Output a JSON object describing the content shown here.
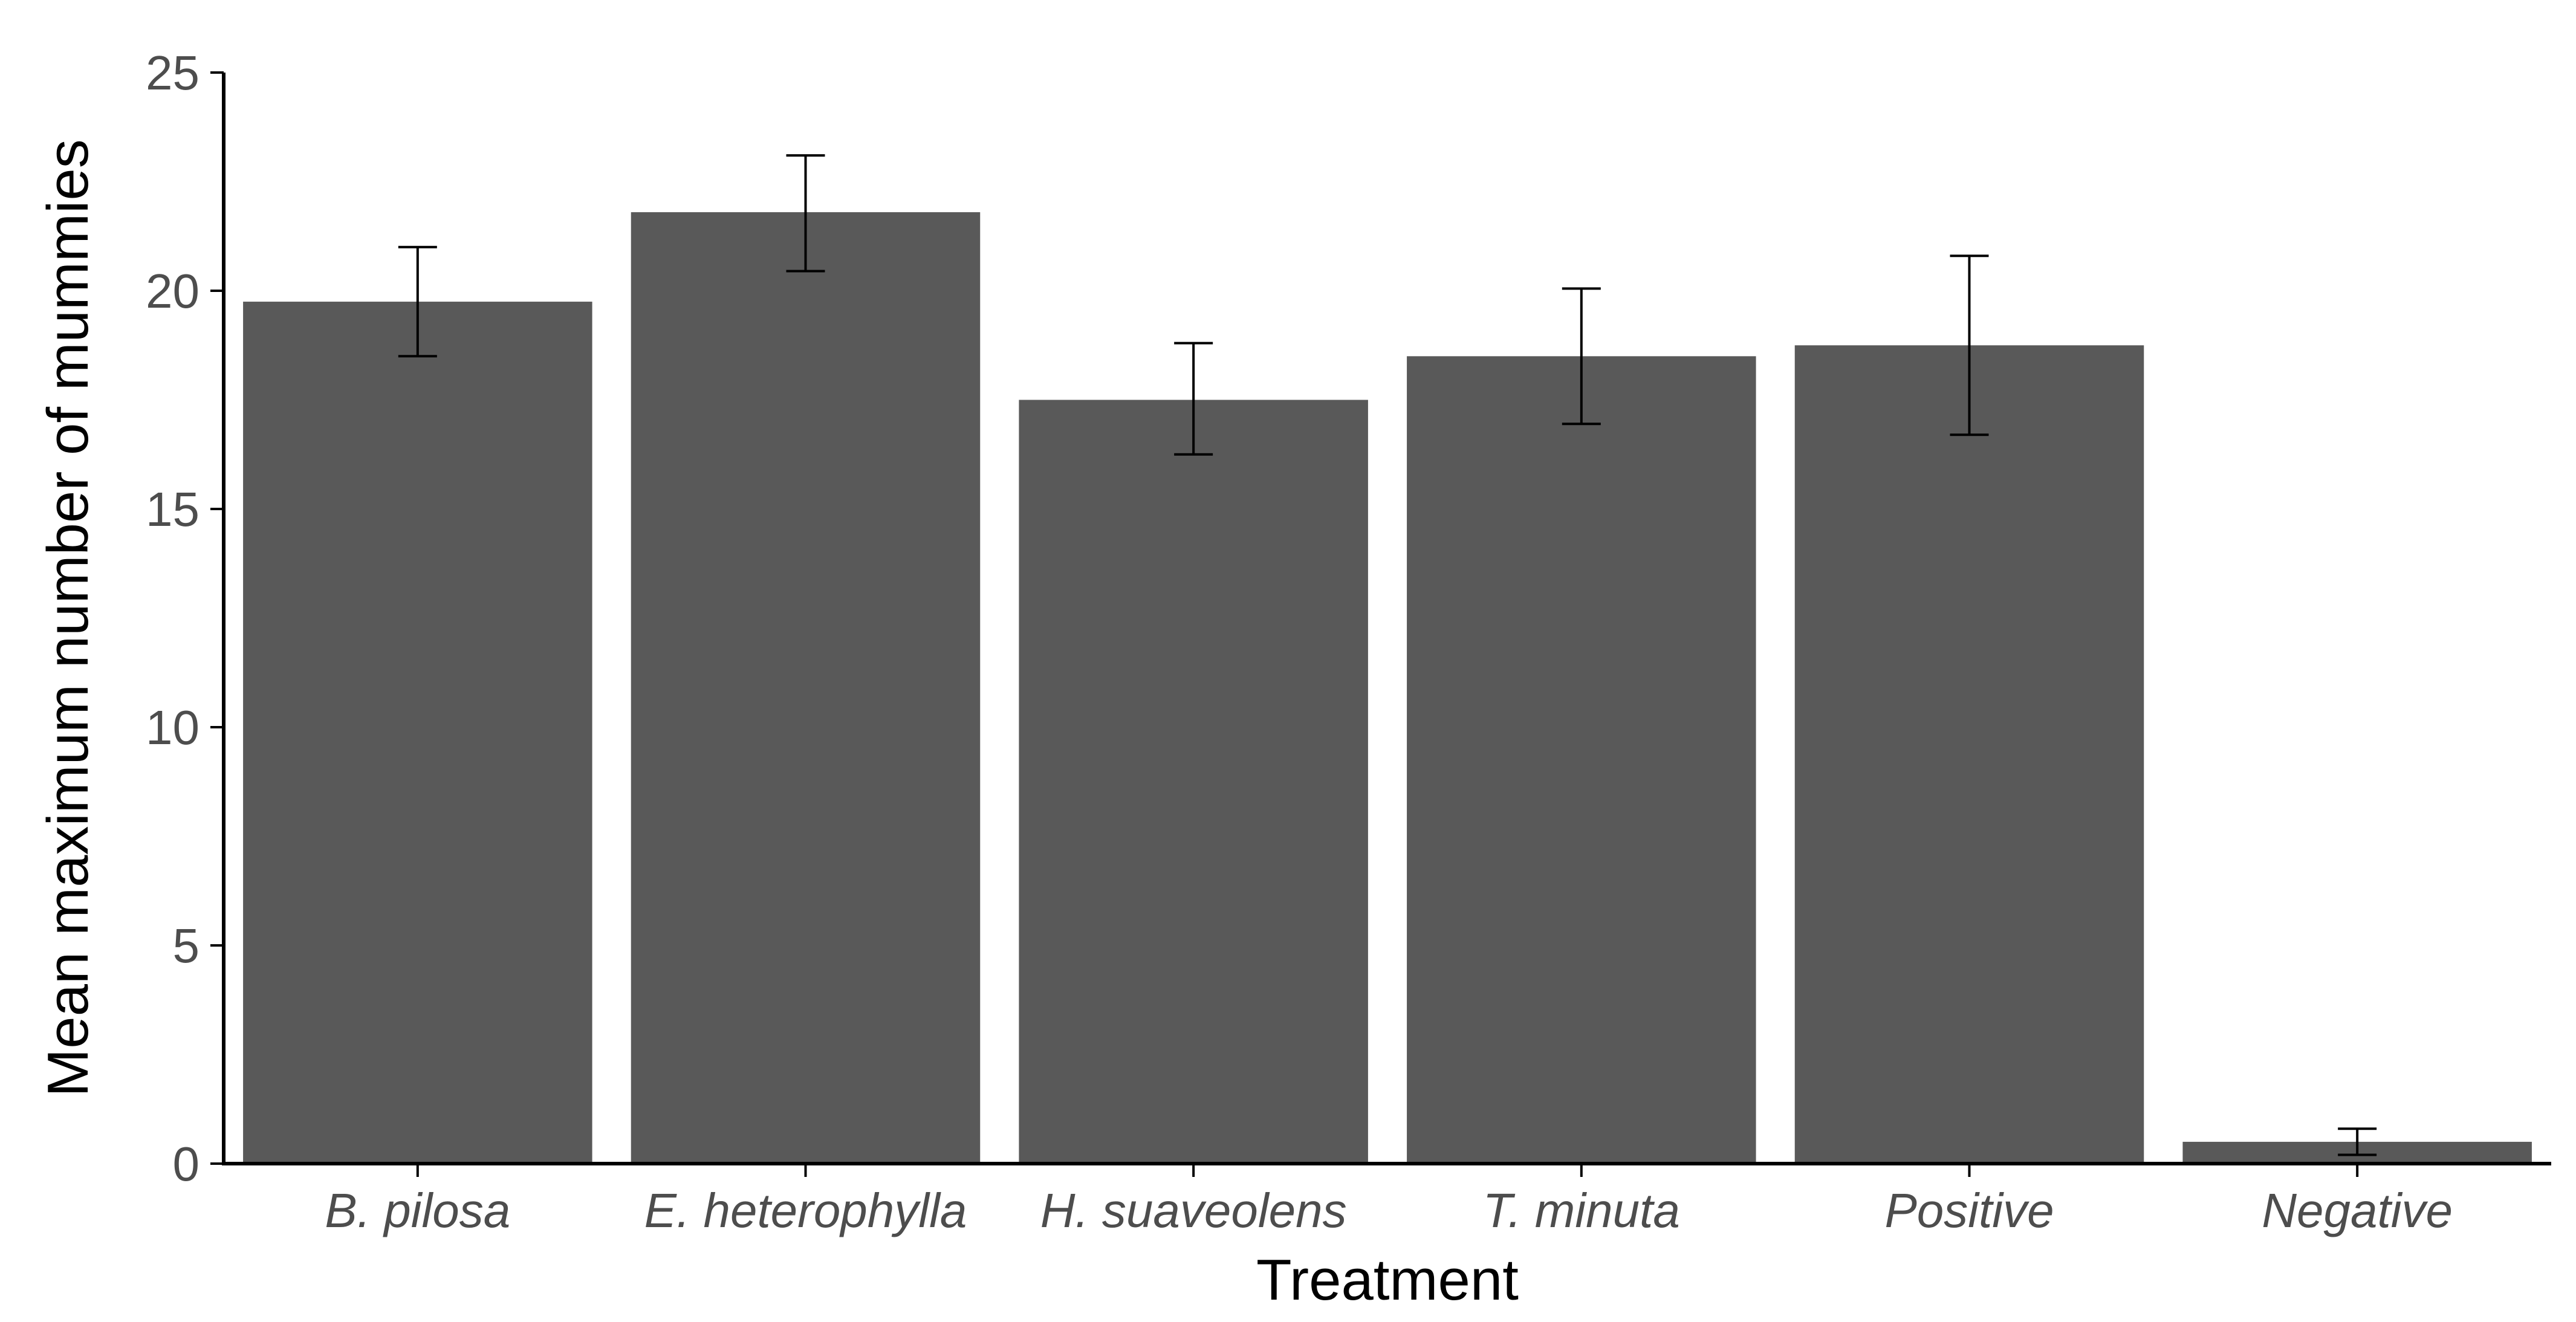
{
  "chart_data": {
    "type": "bar",
    "title": "",
    "xlabel": "Treatment",
    "ylabel": "Mean maximum number of mummies",
    "categories": [
      "B. pilosa",
      "E. heterophylla",
      "H. suaveolens",
      "T. minuta",
      "Positive",
      "Negative"
    ],
    "values": [
      19.75,
      21.8,
      17.5,
      18.5,
      18.75,
      0.5
    ],
    "error_low": [
      18.5,
      20.45,
      16.25,
      16.95,
      16.7,
      0.2
    ],
    "error_high": [
      21.0,
      23.1,
      18.8,
      20.05,
      20.8,
      0.8
    ],
    "ylim": [
      0,
      25
    ],
    "yticks": [
      0,
      5,
      10,
      15,
      20,
      25
    ],
    "grid": false,
    "bar_color": "#595959"
  }
}
